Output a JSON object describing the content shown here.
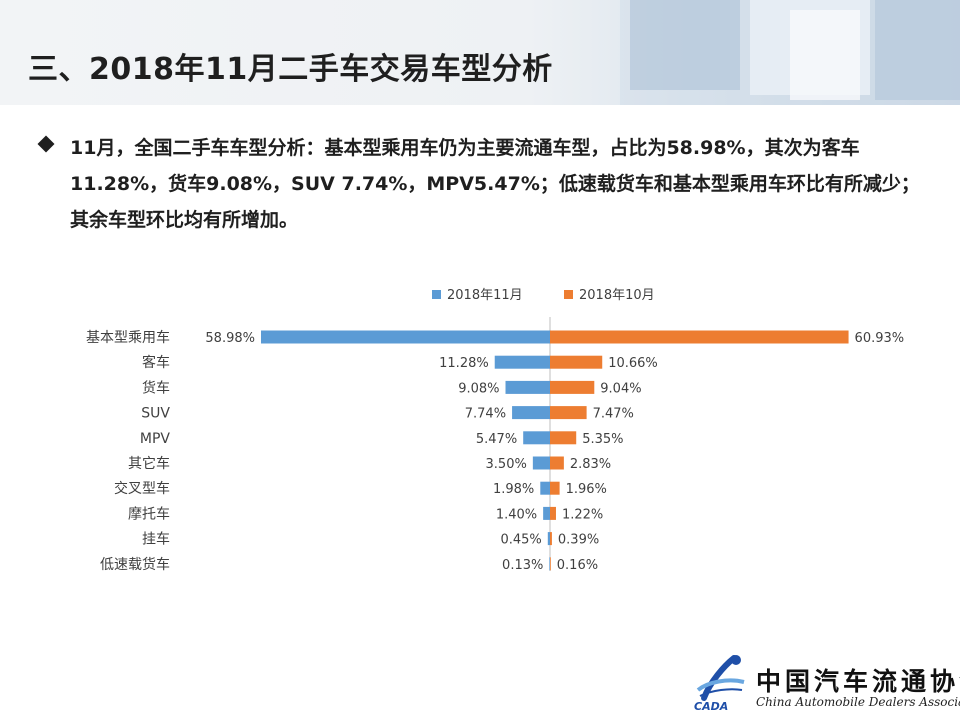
{
  "slide": {
    "title": "三、2018年11月二手车交易车型分析",
    "bullet": "11月，全国二手车车型分析：基本型乘用车仍为主要流通车型，占比为58.98%，其次为客车11.28%，货车9.08%，SUV 7.74%，MPV5.47%；低速载货车和基本型乘用车环比有所减少；其余车型环比均有所增加。"
  },
  "footer": {
    "org_cn": "中国汽车流通协会",
    "org_en": "China Automobile Dealers Association",
    "logo_text": "CADA"
  },
  "colors": {
    "nov": "#5b9bd5",
    "oct": "#ed7d31",
    "text": "#404040"
  },
  "chart_data": {
    "type": "bar",
    "orientation": "horizontal-diverging",
    "categories": [
      "基本型乘用车",
      "客车",
      "货车",
      "SUV",
      "MPV",
      "其它车",
      "交叉型车",
      "摩托车",
      "挂车",
      "低速载货车"
    ],
    "series": [
      {
        "name": "2018年11月",
        "values": [
          58.98,
          11.28,
          9.08,
          7.74,
          5.47,
          3.5,
          1.98,
          1.4,
          0.45,
          0.13
        ]
      },
      {
        "name": "2018年10月",
        "values": [
          60.93,
          10.66,
          9.04,
          7.47,
          5.35,
          2.83,
          1.96,
          1.22,
          0.39,
          0.16
        ]
      }
    ],
    "value_labels": {
      "nov": [
        "58.98%",
        "11.28%",
        "9.08%",
        "7.74%",
        "5.47%",
        "3.50%",
        "1.98%",
        "1.40%",
        "0.45%",
        "0.13%"
      ],
      "oct": [
        "60.93%",
        "10.66%",
        "9.04%",
        "7.47%",
        "5.35%",
        "2.83%",
        "1.96%",
        "1.22%",
        "0.39%",
        "0.16%"
      ]
    },
    "unit": "%",
    "legend_position": "top",
    "grid": false
  }
}
